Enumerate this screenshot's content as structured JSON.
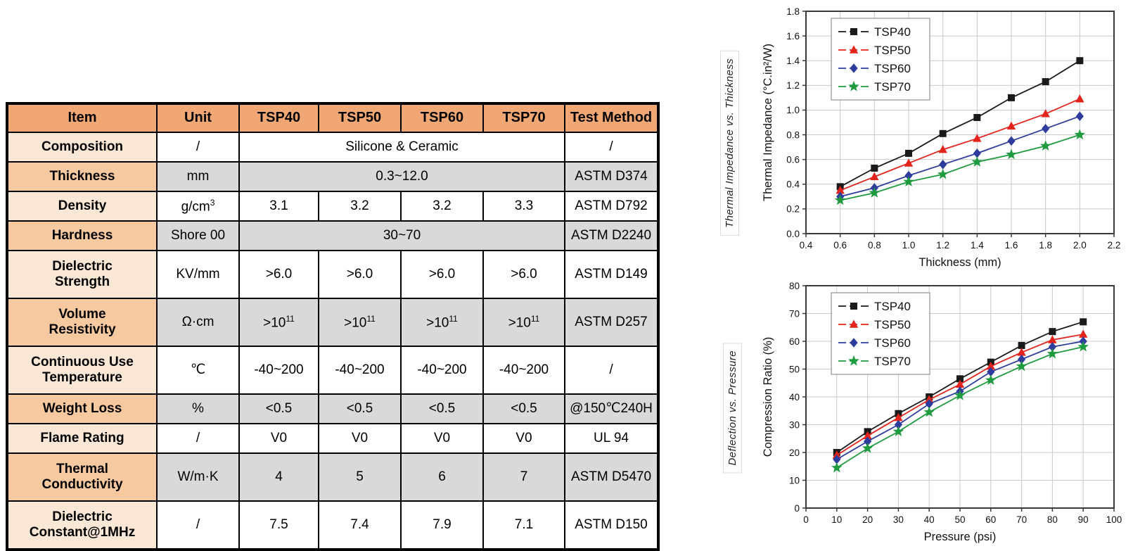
{
  "table": {
    "header": [
      "Item",
      "Unit",
      "TSP40",
      "TSP50",
      "TSP60",
      "TSP70",
      "Test Method"
    ],
    "rows": [
      {
        "tall": false,
        "cells": [
          {
            "text": "Composition",
            "bg": "item-light"
          },
          {
            "text": "/",
            "bg": "white"
          },
          {
            "text": "Silicone & Ceramic",
            "bg": "white",
            "colspan": 4
          },
          {
            "text": "/",
            "bg": "white"
          }
        ]
      },
      {
        "tall": false,
        "cells": [
          {
            "text": "Thickness",
            "bg": "item-mid"
          },
          {
            "text": "mm",
            "bg": "gray"
          },
          {
            "text": "0.3~12.0",
            "bg": "gray",
            "colspan": 4
          },
          {
            "text": "ASTM D374",
            "bg": "gray"
          }
        ]
      },
      {
        "tall": false,
        "cells": [
          {
            "text": "Density",
            "bg": "item-light"
          },
          {
            "text": "g/cm^3",
            "bg": "white"
          },
          {
            "text": "3.1",
            "bg": "white"
          },
          {
            "text": "3.2",
            "bg": "white"
          },
          {
            "text": "3.2",
            "bg": "white"
          },
          {
            "text": "3.3",
            "bg": "white"
          },
          {
            "text": "ASTM D792",
            "bg": "white"
          }
        ]
      },
      {
        "tall": false,
        "cells": [
          {
            "text": "Hardness",
            "bg": "item-mid"
          },
          {
            "text": "Shore 00",
            "bg": "gray"
          },
          {
            "text": "30~70",
            "bg": "gray",
            "colspan": 4
          },
          {
            "text": "ASTM D2240",
            "bg": "gray"
          }
        ]
      },
      {
        "tall": true,
        "cells": [
          {
            "text": "Dielectric\nStrength",
            "bg": "item-light"
          },
          {
            "text": "KV/mm",
            "bg": "white"
          },
          {
            "text": ">6.0",
            "bg": "white"
          },
          {
            "text": ">6.0",
            "bg": "white"
          },
          {
            "text": ">6.0",
            "bg": "white"
          },
          {
            "text": ">6.0",
            "bg": "white"
          },
          {
            "text": "ASTM D149",
            "bg": "white"
          }
        ]
      },
      {
        "tall": true,
        "cells": [
          {
            "text": "Volume\nResistivity",
            "bg": "item-mid"
          },
          {
            "text": "Ω·cm",
            "bg": "gray"
          },
          {
            "text": ">10^11",
            "bg": "gray"
          },
          {
            "text": ">10^11",
            "bg": "gray"
          },
          {
            "text": ">10^11",
            "bg": "gray"
          },
          {
            "text": ">10^11",
            "bg": "gray"
          },
          {
            "text": "ASTM D257",
            "bg": "gray"
          }
        ]
      },
      {
        "tall": true,
        "cells": [
          {
            "text": "Continuous Use\nTemperature",
            "bg": "item-light"
          },
          {
            "text": "℃",
            "bg": "white"
          },
          {
            "text": "-40~200",
            "bg": "white"
          },
          {
            "text": "-40~200",
            "bg": "white"
          },
          {
            "text": "-40~200",
            "bg": "white"
          },
          {
            "text": "-40~200",
            "bg": "white"
          },
          {
            "text": "/",
            "bg": "white"
          }
        ]
      },
      {
        "tall": false,
        "cells": [
          {
            "text": "Weight Loss",
            "bg": "item-mid"
          },
          {
            "text": "%",
            "bg": "gray"
          },
          {
            "text": "<0.5",
            "bg": "gray"
          },
          {
            "text": "<0.5",
            "bg": "gray"
          },
          {
            "text": "<0.5",
            "bg": "gray"
          },
          {
            "text": "<0.5",
            "bg": "gray"
          },
          {
            "text": "@150℃240H",
            "bg": "gray"
          }
        ]
      },
      {
        "tall": false,
        "cells": [
          {
            "text": "Flame Rating",
            "bg": "item-light"
          },
          {
            "text": "/",
            "bg": "white"
          },
          {
            "text": "V0",
            "bg": "white"
          },
          {
            "text": "V0",
            "bg": "white"
          },
          {
            "text": "V0",
            "bg": "white"
          },
          {
            "text": "V0",
            "bg": "white"
          },
          {
            "text": "UL 94",
            "bg": "white"
          }
        ]
      },
      {
        "tall": true,
        "cells": [
          {
            "text": "Thermal\nConductivity",
            "bg": "item-mid"
          },
          {
            "text": "W/m·K",
            "bg": "gray"
          },
          {
            "text": "4",
            "bg": "gray"
          },
          {
            "text": "5",
            "bg": "gray"
          },
          {
            "text": "6",
            "bg": "gray"
          },
          {
            "text": "7",
            "bg": "gray"
          },
          {
            "text": "ASTM D5470",
            "bg": "gray"
          }
        ]
      },
      {
        "tall": true,
        "cells": [
          {
            "text": "Dielectric\nConstant@1MHz",
            "bg": "item-light"
          },
          {
            "text": "/",
            "bg": "white"
          },
          {
            "text": "7.5",
            "bg": "white"
          },
          {
            "text": "7.4",
            "bg": "white"
          },
          {
            "text": "7.9",
            "bg": "white"
          },
          {
            "text": "7.1",
            "bg": "white"
          },
          {
            "text": "ASTM D150",
            "bg": "white"
          }
        ]
      }
    ]
  },
  "colors": {
    "header_orange": "#F0A773",
    "item_light": "#FBE7D6",
    "item_mid": "#F6C9A0",
    "cell_gray": "#D9D9D9",
    "series_black": "#1a1a1a",
    "series_red": "#e2241c",
    "series_blue": "#2e3c9e",
    "series_green": "#1e9b3e"
  },
  "chart_data": [
    {
      "type": "line",
      "side_label": "Thermal Impedance vs. Thickness",
      "xlabel": "Thickness (mm)",
      "ylabel": "Thermal Impedance (°C.in²/W)",
      "xmin": 0.4,
      "xmax": 2.2,
      "ymin": 0.0,
      "ymax": 1.8,
      "grid": true,
      "legend_position": "top-left",
      "xticks": [
        0.4,
        0.6,
        0.8,
        1.0,
        1.2,
        1.4,
        1.6,
        1.8,
        2.0,
        2.2
      ],
      "xtick_labels": [
        "0.4",
        "0.6",
        "0.8",
        "1.0",
        "1.2",
        "1.4",
        "1.6",
        "1.8",
        "2.0",
        "2.2"
      ],
      "yticks": [
        0.0,
        0.2,
        0.4,
        0.6,
        0.8,
        1.0,
        1.2,
        1.4,
        1.6,
        1.8
      ],
      "ytick_labels": [
        "0.0",
        "0.2",
        "0.4",
        "0.6",
        "0.8",
        "1.0",
        "1.2",
        "1.4",
        "1.6",
        "1.8"
      ],
      "x": [
        0.6,
        0.8,
        1.0,
        1.2,
        1.4,
        1.6,
        1.8,
        2.0
      ],
      "series": [
        {
          "name": "TSP40",
          "color": "#1a1a1a",
          "marker": "square",
          "values": [
            0.38,
            0.53,
            0.65,
            0.81,
            0.94,
            1.1,
            1.23,
            1.4
          ]
        },
        {
          "name": "TSP50",
          "color": "#e2241c",
          "marker": "triangle",
          "values": [
            0.35,
            0.46,
            0.57,
            0.68,
            0.77,
            0.87,
            0.97,
            1.09
          ]
        },
        {
          "name": "TSP60",
          "color": "#2e3c9e",
          "marker": "diamond",
          "values": [
            0.3,
            0.37,
            0.47,
            0.56,
            0.65,
            0.75,
            0.85,
            0.95
          ]
        },
        {
          "name": "TSP70",
          "color": "#1e9b3e",
          "marker": "star",
          "values": [
            0.27,
            0.33,
            0.42,
            0.48,
            0.58,
            0.64,
            0.71,
            0.8
          ]
        }
      ]
    },
    {
      "type": "line",
      "side_label": "Deflection vs. Pressure",
      "xlabel": "Pressure (psi)",
      "ylabel": "Compression Ratio (%)",
      "xmin": 0,
      "xmax": 100,
      "ymin": 0,
      "ymax": 80,
      "grid": true,
      "legend_position": "top-left",
      "xticks": [
        0,
        10,
        20,
        30,
        40,
        50,
        60,
        70,
        80,
        90,
        100
      ],
      "xtick_labels": [
        "0",
        "10",
        "20",
        "30",
        "40",
        "50",
        "60",
        "70",
        "80",
        "90",
        "100"
      ],
      "yticks": [
        0,
        10,
        20,
        30,
        40,
        50,
        60,
        70,
        80
      ],
      "ytick_labels": [
        "0",
        "10",
        "20",
        "30",
        "40",
        "50",
        "60",
        "70",
        "80"
      ],
      "x": [
        10,
        20,
        30,
        40,
        50,
        60,
        70,
        80,
        90
      ],
      "series": [
        {
          "name": "TSP40",
          "color": "#1a1a1a",
          "marker": "square",
          "values": [
            20.0,
            27.5,
            34.0,
            40.0,
            46.5,
            52.5,
            58.5,
            63.5,
            67.0
          ]
        },
        {
          "name": "TSP50",
          "color": "#e2241c",
          "marker": "triangle",
          "values": [
            19.0,
            26.0,
            32.5,
            39.0,
            44.5,
            51.0,
            56.0,
            60.5,
            62.5
          ]
        },
        {
          "name": "TSP60",
          "color": "#2e3c9e",
          "marker": "diamond",
          "values": [
            17.5,
            24.0,
            30.0,
            37.5,
            42.0,
            49.0,
            53.5,
            58.0,
            60.0
          ]
        },
        {
          "name": "TSP70",
          "color": "#1e9b3e",
          "marker": "star",
          "values": [
            14.5,
            21.5,
            27.5,
            34.5,
            40.5,
            46.0,
            51.0,
            55.5,
            58.0
          ]
        }
      ]
    }
  ]
}
